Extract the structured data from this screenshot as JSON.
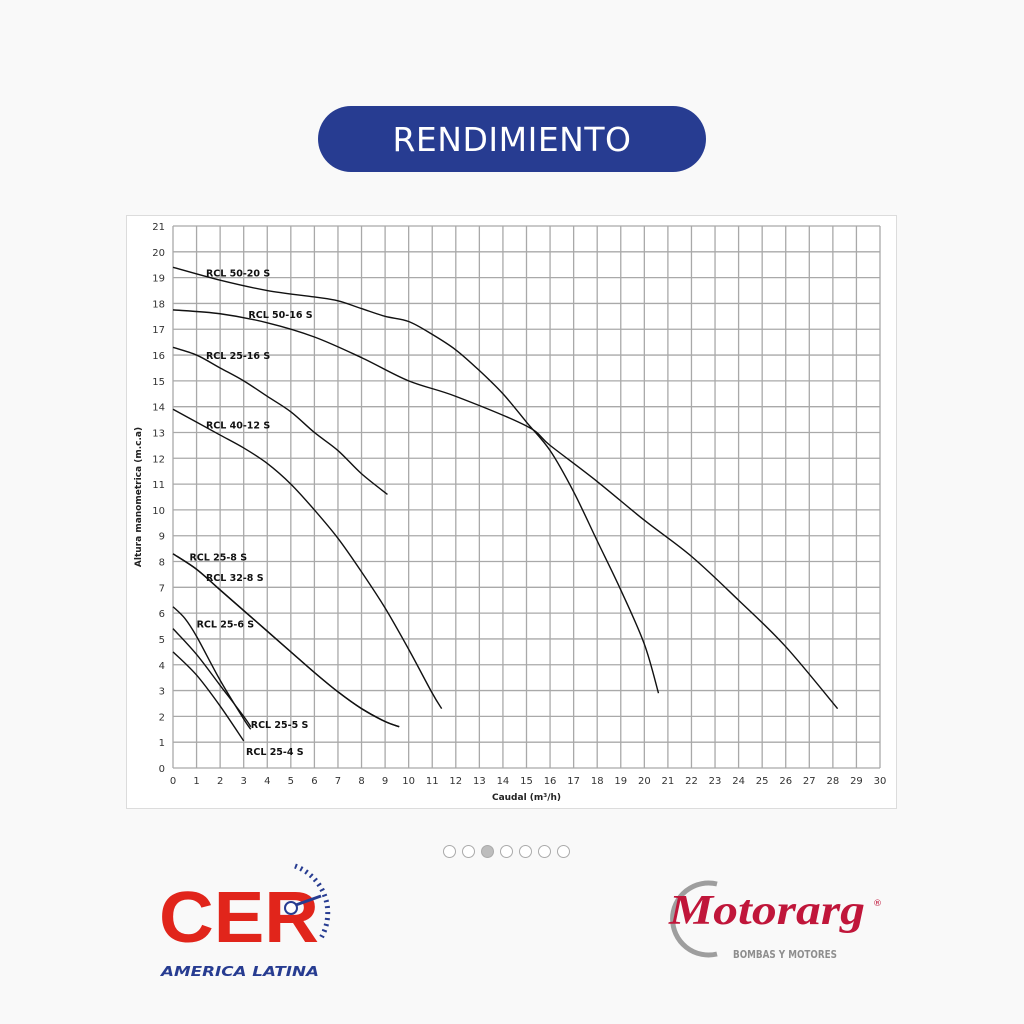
{
  "header": {
    "title": "RENDIMIENTO",
    "accent": "#273c91"
  },
  "carousel": {
    "count": 7,
    "active_index": 2
  },
  "logos": {
    "left": {
      "name": "CER",
      "subtitle": "AMERICA LATINA",
      "color": "#e1251b",
      "accent": "#273c91"
    },
    "right": {
      "name": "Motorarg",
      "subtitle": "BOMBAS Y MOTORES",
      "color": "#c0163a"
    }
  },
  "chart_data": {
    "type": "line",
    "xlabel": "Caudal (m³/h)",
    "ylabel": "Altura manometrica (m.c.a)",
    "xlim": [
      0,
      30
    ],
    "ylim": [
      0,
      21
    ],
    "xticks": [
      0,
      1,
      2,
      3,
      4,
      5,
      6,
      7,
      8,
      9,
      10,
      11,
      12,
      13,
      14,
      15,
      16,
      17,
      18,
      19,
      20,
      21,
      22,
      23,
      24,
      25,
      26,
      27,
      28,
      29,
      30
    ],
    "yticks": [
      0,
      1,
      2,
      3,
      4,
      5,
      6,
      7,
      8,
      9,
      10,
      11,
      12,
      13,
      14,
      15,
      16,
      17,
      18,
      19,
      20,
      21
    ],
    "grid": true,
    "series": [
      {
        "name": "RCL 50-20 S",
        "points": [
          [
            0,
            19.4
          ],
          [
            2,
            18.9
          ],
          [
            4,
            18.5
          ],
          [
            6,
            18.25
          ],
          [
            7,
            18.1
          ],
          [
            8,
            17.8
          ],
          [
            9,
            17.5
          ],
          [
            10,
            17.3
          ],
          [
            11,
            16.8
          ],
          [
            12,
            16.2
          ],
          [
            13,
            15.4
          ],
          [
            14,
            14.5
          ],
          [
            15,
            13.4
          ],
          [
            16,
            12.3
          ],
          [
            17,
            10.7
          ],
          [
            18,
            8.8
          ],
          [
            19,
            6.9
          ],
          [
            20,
            4.8
          ],
          [
            20.6,
            2.9
          ]
        ]
      },
      {
        "name": "RCL 50-16 S",
        "points": [
          [
            0,
            17.75
          ],
          [
            2,
            17.6
          ],
          [
            4,
            17.25
          ],
          [
            6,
            16.7
          ],
          [
            8,
            15.9
          ],
          [
            10,
            15.0
          ],
          [
            12,
            14.4
          ],
          [
            15,
            13.25
          ],
          [
            16,
            12.5
          ],
          [
            18,
            11.1
          ],
          [
            20,
            9.6
          ],
          [
            22,
            8.2
          ],
          [
            24,
            6.5
          ],
          [
            26,
            4.7
          ],
          [
            28.2,
            2.3
          ]
        ]
      },
      {
        "name": "RCL 25-16 S",
        "points": [
          [
            0,
            16.3
          ],
          [
            1,
            16.0
          ],
          [
            2,
            15.5
          ],
          [
            3,
            15.0
          ],
          [
            4,
            14.4
          ],
          [
            5,
            13.8
          ],
          [
            6,
            13.0
          ],
          [
            7,
            12.3
          ],
          [
            8,
            11.4
          ],
          [
            9.1,
            10.6
          ]
        ]
      },
      {
        "name": "RCL 40-12 S",
        "points": [
          [
            0,
            13.9
          ],
          [
            1,
            13.4
          ],
          [
            2,
            12.9
          ],
          [
            3,
            12.4
          ],
          [
            4,
            11.8
          ],
          [
            5,
            11.0
          ],
          [
            6,
            10.0
          ],
          [
            7,
            8.9
          ],
          [
            8,
            7.6
          ],
          [
            9,
            6.2
          ],
          [
            10,
            4.6
          ],
          [
            11,
            2.9
          ],
          [
            11.4,
            2.3
          ]
        ]
      },
      {
        "name": "RCL 25-8 S",
        "points": [
          [
            0,
            8.3
          ],
          [
            1,
            7.7
          ],
          [
            2,
            6.9
          ],
          [
            3,
            6.1
          ],
          [
            4,
            5.3
          ],
          [
            5,
            4.5
          ],
          [
            6,
            3.7
          ],
          [
            7,
            2.95
          ],
          [
            8,
            2.3
          ],
          [
            9,
            1.8
          ],
          [
            9.6,
            1.6
          ]
        ]
      },
      {
        "name": "RCL 32-8 S",
        "points": [
          [
            0,
            8.3
          ],
          [
            1,
            7.7
          ],
          [
            2,
            6.9
          ],
          [
            3,
            6.1
          ],
          [
            4,
            5.3
          ],
          [
            5,
            4.5
          ],
          [
            6,
            3.7
          ],
          [
            7,
            2.95
          ],
          [
            8,
            2.3
          ],
          [
            9,
            1.8
          ],
          [
            9.6,
            1.6
          ]
        ]
      },
      {
        "name": "RCL 25-6 S",
        "points": [
          [
            0,
            6.25
          ],
          [
            0.5,
            5.8
          ],
          [
            1,
            5.1
          ],
          [
            2,
            3.4
          ],
          [
            3,
            1.9
          ],
          [
            3.3,
            1.5
          ]
        ]
      },
      {
        "name": "RCL 25-5 S",
        "points": [
          [
            0,
            5.4
          ],
          [
            1,
            4.4
          ],
          [
            2,
            3.2
          ],
          [
            3,
            2.0
          ],
          [
            3.3,
            1.6
          ]
        ]
      },
      {
        "name": "RCL 25-4 S",
        "points": [
          [
            0,
            4.5
          ],
          [
            1,
            3.6
          ],
          [
            2,
            2.4
          ],
          [
            3,
            1.05
          ]
        ]
      }
    ],
    "labels": [
      {
        "text": "RCL 50-20 S",
        "at": [
          1.4,
          19.2
        ]
      },
      {
        "text": "RCL 50-16 S",
        "at": [
          3.2,
          17.6
        ]
      },
      {
        "text": "RCL 25-16 S",
        "at": [
          1.4,
          16.0
        ]
      },
      {
        "text": "RCL 40-12 S",
        "at": [
          1.4,
          13.3
        ]
      },
      {
        "text": "RCL 25-8 S",
        "at": [
          0.7,
          8.2
        ]
      },
      {
        "text": "RCL 32-8 S",
        "at": [
          1.4,
          7.4
        ]
      },
      {
        "text": "RCL 25-6 S",
        "at": [
          1.0,
          5.6
        ]
      },
      {
        "text": "RCL 25-5 S",
        "at": [
          3.3,
          1.7
        ]
      },
      {
        "text": "RCL 25-4 S",
        "at": [
          3.1,
          0.65
        ]
      }
    ]
  }
}
